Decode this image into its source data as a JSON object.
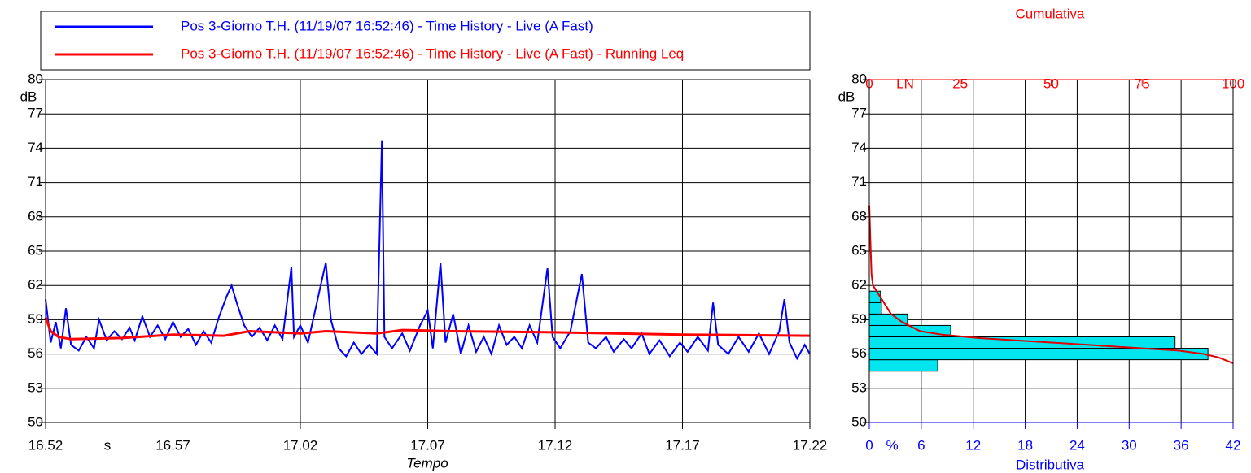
{
  "chart_data": [
    {
      "type": "line",
      "xlabel": "Tempo",
      "x_unit": "s",
      "y_unit": "dB",
      "xlim": [
        1012,
        1042
      ],
      "xticks": [
        {
          "value": 1012,
          "label": "16.52"
        },
        {
          "value": 1017,
          "label": "16.57"
        },
        {
          "value": 1022,
          "label": "17.02"
        },
        {
          "value": 1027,
          "label": "17.07"
        },
        {
          "value": 1032,
          "label": "17.12"
        },
        {
          "value": 1037,
          "label": "17.17"
        },
        {
          "value": 1042,
          "label": "17.22"
        }
      ],
      "ylim": [
        50,
        80
      ],
      "yticks": [
        50,
        53,
        56,
        59,
        62,
        65,
        68,
        71,
        74,
        77,
        80
      ],
      "grid": true,
      "series": [
        {
          "name": "Pos 3-Giorno T.H. (11/19/07 16:52:46) - Time History - Live (A Fast)",
          "color": "#0000ff",
          "x": [
            1012,
            1012.2,
            1012.4,
            1012.6,
            1012.8,
            1013,
            1013.3,
            1013.6,
            1013.9,
            1014.1,
            1014.4,
            1014.7,
            1015,
            1015.3,
            1015.5,
            1015.8,
            1016.1,
            1016.4,
            1016.7,
            1017,
            1017.3,
            1017.6,
            1017.9,
            1018.2,
            1018.5,
            1018.8,
            1019.1,
            1019.3,
            1019.5,
            1019.8,
            1020.1,
            1020.4,
            1020.7,
            1021,
            1021.3,
            1021.65,
            1021.75,
            1022,
            1022.3,
            1022.6,
            1022.8,
            1023,
            1023.2,
            1023.5,
            1023.8,
            1024.1,
            1024.4,
            1024.7,
            1025,
            1025.2,
            1025.3,
            1025.6,
            1026,
            1026.3,
            1026.7,
            1027,
            1027.2,
            1027.5,
            1027.7,
            1028,
            1028.3,
            1028.6,
            1028.9,
            1029.2,
            1029.5,
            1029.8,
            1030.1,
            1030.4,
            1030.7,
            1031,
            1031.3,
            1031.7,
            1031.9,
            1032.2,
            1032.6,
            1033.05,
            1033.3,
            1033.6,
            1034,
            1034.3,
            1034.7,
            1035,
            1035.4,
            1035.7,
            1036.1,
            1036.5,
            1036.9,
            1037.2,
            1037.6,
            1038,
            1038.2,
            1038.4,
            1038.8,
            1039.2,
            1039.6,
            1040,
            1040.4,
            1040.8,
            1041,
            1041.2,
            1041.5,
            1041.8,
            1042
          ],
          "values": [
            60.8,
            57,
            58.8,
            56.5,
            60,
            56.8,
            56.3,
            57.5,
            56.5,
            59,
            57.2,
            58,
            57.3,
            58.3,
            57.2,
            59.3,
            57.5,
            58.5,
            57.3,
            58.8,
            57.5,
            58.2,
            56.8,
            58,
            57,
            59.2,
            61,
            62,
            60.5,
            58.5,
            57.5,
            58.3,
            57.2,
            58.5,
            57.3,
            63.6,
            57.5,
            58.5,
            57,
            60,
            62,
            64,
            59,
            56.5,
            55.8,
            57,
            56,
            56.8,
            56,
            74.7,
            57.5,
            56.5,
            57.8,
            56.3,
            58.5,
            59.8,
            56.5,
            64,
            57,
            59.5,
            56,
            58.5,
            56.2,
            57.5,
            56,
            58.5,
            56.8,
            57.5,
            56.5,
            58.5,
            57,
            63.5,
            57.5,
            56.5,
            58,
            63,
            57,
            56.5,
            57.5,
            56.2,
            57.3,
            56.5,
            57.8,
            56,
            57.2,
            55.8,
            57,
            56.2,
            57.5,
            56.3,
            60.5,
            56.8,
            56,
            57.5,
            56.2,
            57.8,
            56,
            58,
            60.8,
            57,
            55.6,
            56.8,
            56
          ]
        },
        {
          "name": "Pos 3-Giorno T.H. (11/19/07 16:52:46) - Time History - Live (A Fast) - Running Leq",
          "color": "#ff0000",
          "x": [
            1012,
            1012.2,
            1012.5,
            1013,
            1015,
            1017,
            1019,
            1020,
            1022,
            1023,
            1025,
            1026,
            1028,
            1032,
            1037,
            1042
          ],
          "values": [
            59.2,
            58,
            57.5,
            57.3,
            57.4,
            57.7,
            57.6,
            58,
            57.8,
            58,
            57.8,
            58.1,
            58,
            57.9,
            57.7,
            57.6
          ]
        }
      ]
    },
    {
      "type": "histogram",
      "xlabel": "Distributiva",
      "x_unit": "%",
      "x2label": "Cumulativa",
      "x2_unit": "LN",
      "y_unit": "dB",
      "xlim": [
        0,
        42
      ],
      "xticks": [
        0,
        6,
        12,
        18,
        24,
        30,
        36,
        42
      ],
      "x2lim": [
        0,
        100
      ],
      "x2ticks": [
        0,
        25,
        50,
        75,
        100
      ],
      "ylim": [
        50,
        80
      ],
      "yticks": [
        50,
        53,
        56,
        59,
        62,
        65,
        68,
        71,
        74,
        77,
        80
      ],
      "grid": true,
      "bins": [
        54.5,
        55.5,
        56.5,
        57.5,
        58.5,
        59.5,
        60.5,
        61.5
      ],
      "counts": [
        7.9,
        39.1,
        35.3,
        9.4,
        4.4,
        1.4,
        1.3
      ],
      "color": "#00e5ee",
      "cumulative": {
        "color": "#e00000",
        "x": [
          0,
          0.3,
          0.6,
          1,
          2,
          4,
          6,
          9,
          14,
          20,
          30,
          45,
          60,
          75,
          85,
          92,
          96,
          100
        ],
        "values": [
          69,
          66,
          63,
          62,
          61.5,
          60.5,
          59.5,
          58.8,
          58,
          57.7,
          57.4,
          57.1,
          56.8,
          56.5,
          56.3,
          56,
          55.7,
          55.2
        ]
      }
    }
  ]
}
